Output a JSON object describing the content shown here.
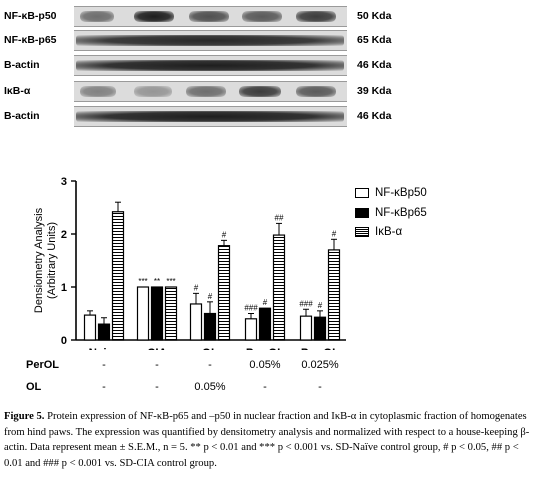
{
  "blot": {
    "rows": [
      {
        "label": "NF-κB-p50",
        "kda": "50 Kda"
      },
      {
        "label": "NF-κB-p65",
        "kda": "65 Kda"
      },
      {
        "label": "B-actin",
        "kda": "46 Kda"
      },
      {
        "label": "IκB-α",
        "kda": "39 Kda"
      },
      {
        "label": "B-actin",
        "kda": "46 Kda"
      }
    ]
  },
  "legend": {
    "items": [
      "NF-κBp50",
      "NF-κBp65",
      "IκB-α"
    ]
  },
  "chart_data": {
    "type": "bar",
    "ylabel": "Densiometry Analysis\n(Arbitrary Units)",
    "ylim": [
      0,
      3
    ],
    "yticks": [
      "0",
      "1",
      "2",
      "3"
    ],
    "categories": [
      "Naive",
      "CIA",
      "OL",
      "Per-OL",
      "Per-OL"
    ],
    "series": [
      {
        "name": "NF-κBp50",
        "values": [
          0.47,
          1.0,
          0.68,
          0.4,
          0.45
        ],
        "errors": [
          0.08,
          0.0,
          0.2,
          0.1,
          0.13
        ],
        "annotations": [
          "",
          "***",
          "#",
          "###",
          "###"
        ]
      },
      {
        "name": "NF-κBp65",
        "values": [
          0.3,
          1.0,
          0.5,
          0.6,
          0.43
        ],
        "errors": [
          0.12,
          0.0,
          0.22,
          0.0,
          0.12
        ],
        "annotations": [
          "",
          "**",
          "#",
          "#",
          "#"
        ]
      },
      {
        "name": "IκB-α",
        "values": [
          2.42,
          1.0,
          1.78,
          1.98,
          1.7
        ],
        "errors": [
          0.18,
          0.0,
          0.1,
          0.22,
          0.2
        ],
        "annotations": [
          "",
          "***",
          "#",
          "##",
          "#"
        ]
      }
    ]
  },
  "treatment_rows": [
    {
      "label": "PerOL",
      "values": [
        "-",
        "-",
        "-",
        "0.05%",
        "0.025%"
      ]
    },
    {
      "label": "OL",
      "values": [
        "-",
        "-",
        "0.05%",
        "-",
        "-"
      ]
    }
  ],
  "caption": {
    "fig_label": "Figure 5.",
    "text": " Protein expression of NF-κB-p65 and –p50 in nuclear fraction and IκB-α in cytoplasmic fraction of homogenates from hind paws. The expression was quantified by densitometry analysis and normalized with respect to a house-keeping β-actin.  Data represent mean ± S.E.M., n = 5. ** p < 0.01 and *** p < 0.001 vs. SD-Naïve control group, # p < 0.05, ## p < 0.01 and ### p < 0.001 vs. SD-CIA control group."
  }
}
